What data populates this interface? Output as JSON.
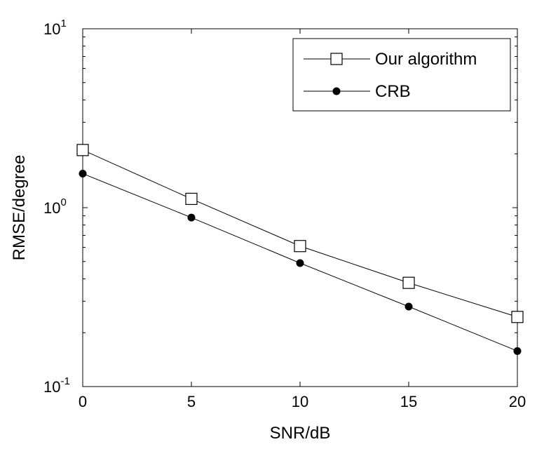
{
  "chart_data": {
    "type": "line",
    "xlabel": "SNR/dB",
    "ylabel": "RMSE/degree",
    "x": [
      0,
      5,
      10,
      15,
      20
    ],
    "xlim": [
      0,
      20
    ],
    "ylim": [
      0.1,
      10
    ],
    "yscale": "log",
    "x_ticks": [
      "0",
      "5",
      "10",
      "15",
      "20"
    ],
    "y_ticks": [
      {
        "base": "10",
        "exp": "-1"
      },
      {
        "base": "10",
        "exp": "0"
      },
      {
        "base": "10",
        "exp": "1"
      }
    ],
    "legend_position": "top-right",
    "series": [
      {
        "name": "Our algorithm",
        "marker": "open-square",
        "values": [
          2.1,
          1.12,
          0.61,
          0.38,
          0.245
        ]
      },
      {
        "name": "CRB",
        "marker": "filled-circle",
        "values": [
          1.55,
          0.88,
          0.49,
          0.28,
          0.158
        ]
      }
    ]
  }
}
